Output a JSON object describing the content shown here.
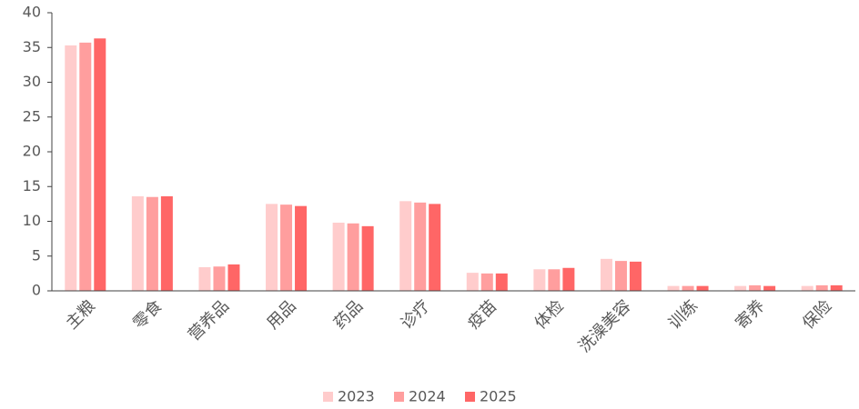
{
  "chart_data": {
    "type": "bar",
    "categories": [
      "主粮",
      "零食",
      "营养品",
      "用品",
      "药品",
      "诊疗",
      "疫苗",
      "体检",
      "洗澡美容",
      "训练",
      "寄养",
      "保险"
    ],
    "series": [
      {
        "name": "2023",
        "color": "#ffcccc",
        "values": [
          35.3,
          13.6,
          3.4,
          12.5,
          9.8,
          12.9,
          2.6,
          3.1,
          4.6,
          0.7,
          0.7,
          0.7
        ]
      },
      {
        "name": "2024",
        "color": "#ff9e9e",
        "values": [
          35.7,
          13.5,
          3.5,
          12.4,
          9.7,
          12.7,
          2.5,
          3.1,
          4.3,
          0.7,
          0.8,
          0.8
        ]
      },
      {
        "name": "2025",
        "color": "#ff6666",
        "values": [
          36.3,
          13.6,
          3.8,
          12.2,
          9.3,
          12.5,
          2.5,
          3.3,
          4.2,
          0.7,
          0.7,
          0.8
        ]
      }
    ],
    "ylim": [
      0,
      40
    ],
    "yticks": [
      0,
      5,
      10,
      15,
      20,
      25,
      30,
      35,
      40
    ],
    "legend": "bottom"
  }
}
